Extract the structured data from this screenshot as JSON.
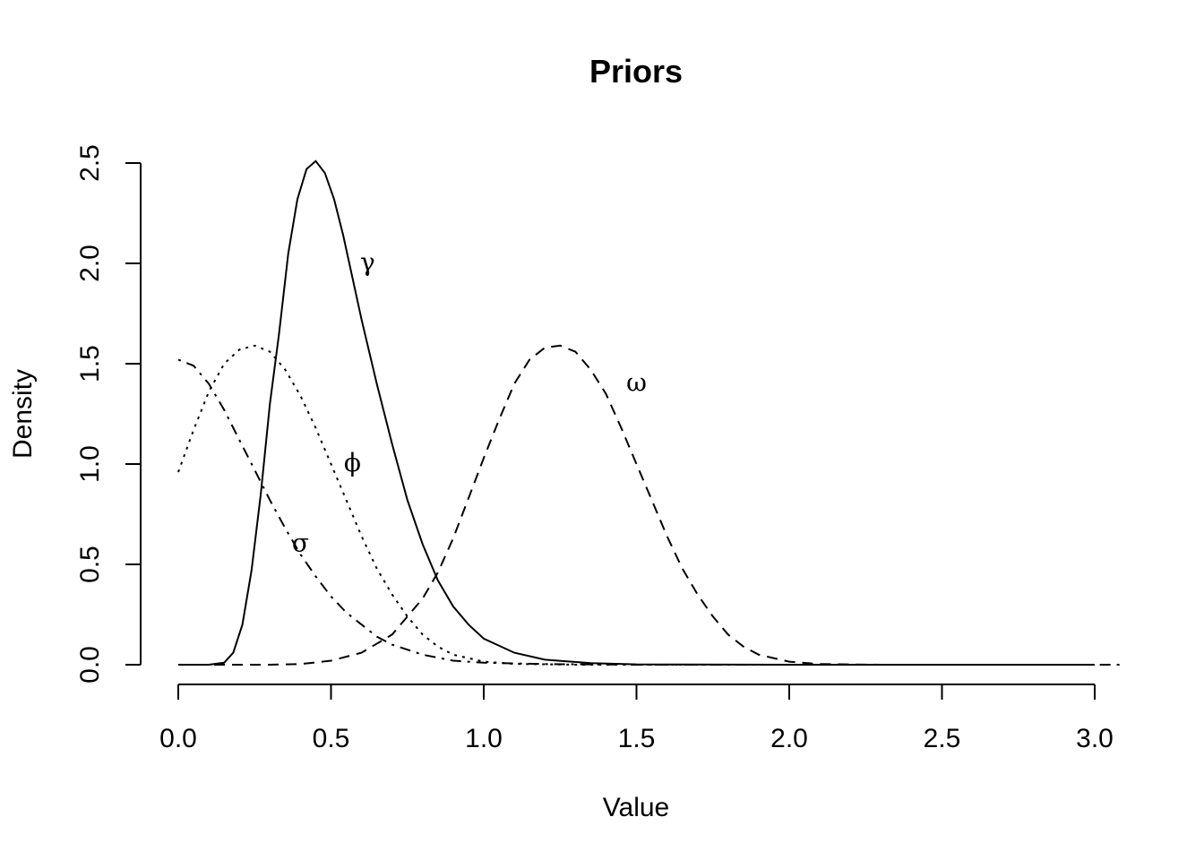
{
  "chart_data": {
    "type": "line",
    "title": "Priors",
    "xlabel": "Value",
    "ylabel": "Density",
    "xlim": [
      0,
      3
    ],
    "ylim": [
      0,
      2.5
    ],
    "x_ticks": [
      "0.0",
      "0.5",
      "1.0",
      "1.5",
      "2.0",
      "2.5",
      "3.0"
    ],
    "y_ticks": [
      "0.0",
      "0.5",
      "1.0",
      "1.5",
      "2.0",
      "2.5"
    ],
    "grid": false,
    "legend": "none",
    "series": [
      {
        "name": "γ",
        "line_style": "solid",
        "label_at": [
          0.62,
          2.0
        ],
        "points": [
          [
            0.0,
            0.0
          ],
          [
            0.1,
            0.0
          ],
          [
            0.15,
            0.01
          ],
          [
            0.18,
            0.06
          ],
          [
            0.21,
            0.2
          ],
          [
            0.24,
            0.47
          ],
          [
            0.27,
            0.85
          ],
          [
            0.3,
            1.3
          ],
          [
            0.33,
            1.65
          ],
          [
            0.36,
            2.05
          ],
          [
            0.39,
            2.32
          ],
          [
            0.42,
            2.47
          ],
          [
            0.45,
            2.51
          ],
          [
            0.48,
            2.45
          ],
          [
            0.51,
            2.32
          ],
          [
            0.54,
            2.14
          ],
          [
            0.6,
            1.72
          ],
          [
            0.65,
            1.4
          ],
          [
            0.7,
            1.1
          ],
          [
            0.75,
            0.82
          ],
          [
            0.8,
            0.6
          ],
          [
            0.85,
            0.42
          ],
          [
            0.9,
            0.29
          ],
          [
            0.95,
            0.2
          ],
          [
            1.0,
            0.13
          ],
          [
            1.1,
            0.06
          ],
          [
            1.2,
            0.025
          ],
          [
            1.35,
            0.008
          ],
          [
            1.5,
            0.002
          ],
          [
            2.0,
            0.0
          ],
          [
            3.0,
            0.0
          ]
        ]
      },
      {
        "name": "ϕ",
        "line_style": "dotted",
        "label_at": [
          0.57,
          1.0
        ],
        "points": [
          [
            0.0,
            0.96
          ],
          [
            0.05,
            1.17
          ],
          [
            0.1,
            1.36
          ],
          [
            0.15,
            1.5
          ],
          [
            0.2,
            1.57
          ],
          [
            0.25,
            1.59
          ],
          [
            0.3,
            1.56
          ],
          [
            0.35,
            1.47
          ],
          [
            0.4,
            1.34
          ],
          [
            0.45,
            1.18
          ],
          [
            0.5,
            1.0
          ],
          [
            0.55,
            0.82
          ],
          [
            0.6,
            0.64
          ],
          [
            0.65,
            0.48
          ],
          [
            0.7,
            0.35
          ],
          [
            0.75,
            0.24
          ],
          [
            0.8,
            0.15
          ],
          [
            0.85,
            0.09
          ],
          [
            0.9,
            0.05
          ],
          [
            1.0,
            0.015
          ],
          [
            1.1,
            0.004
          ],
          [
            1.3,
            0.0
          ],
          [
            3.0,
            0.0
          ]
        ]
      },
      {
        "name": "σ",
        "line_style": "dashdot",
        "label_at": [
          0.4,
          0.6
        ],
        "points": [
          [
            0.0,
            1.52
          ],
          [
            0.05,
            1.49
          ],
          [
            0.1,
            1.4
          ],
          [
            0.15,
            1.27
          ],
          [
            0.2,
            1.12
          ],
          [
            0.25,
            0.97
          ],
          [
            0.3,
            0.82
          ],
          [
            0.35,
            0.68
          ],
          [
            0.4,
            0.55
          ],
          [
            0.45,
            0.44
          ],
          [
            0.5,
            0.34
          ],
          [
            0.55,
            0.26
          ],
          [
            0.6,
            0.2
          ],
          [
            0.65,
            0.14
          ],
          [
            0.7,
            0.1
          ],
          [
            0.8,
            0.05
          ],
          [
            0.9,
            0.02
          ],
          [
            1.0,
            0.01
          ],
          [
            1.2,
            0.003
          ],
          [
            1.5,
            0.0
          ],
          [
            3.1,
            0.0
          ]
        ]
      },
      {
        "name": "ω",
        "line_style": "dashed",
        "label_at": [
          1.5,
          1.4
        ],
        "points": [
          [
            0.0,
            0.0
          ],
          [
            0.3,
            0.0
          ],
          [
            0.4,
            0.003
          ],
          [
            0.5,
            0.02
          ],
          [
            0.6,
            0.06
          ],
          [
            0.7,
            0.15
          ],
          [
            0.8,
            0.33
          ],
          [
            0.85,
            0.46
          ],
          [
            0.9,
            0.63
          ],
          [
            0.95,
            0.83
          ],
          [
            1.0,
            1.03
          ],
          [
            1.05,
            1.22
          ],
          [
            1.1,
            1.4
          ],
          [
            1.15,
            1.52
          ],
          [
            1.2,
            1.58
          ],
          [
            1.25,
            1.59
          ],
          [
            1.3,
            1.56
          ],
          [
            1.35,
            1.47
          ],
          [
            1.4,
            1.35
          ],
          [
            1.45,
            1.18
          ],
          [
            1.5,
            1.0
          ],
          [
            1.55,
            0.82
          ],
          [
            1.6,
            0.64
          ],
          [
            1.65,
            0.48
          ],
          [
            1.7,
            0.35
          ],
          [
            1.75,
            0.24
          ],
          [
            1.8,
            0.15
          ],
          [
            1.85,
            0.09
          ],
          [
            1.9,
            0.05
          ],
          [
            2.0,
            0.015
          ],
          [
            2.1,
            0.003
          ],
          [
            2.3,
            0.0
          ],
          [
            3.0,
            0.0
          ]
        ]
      }
    ]
  }
}
